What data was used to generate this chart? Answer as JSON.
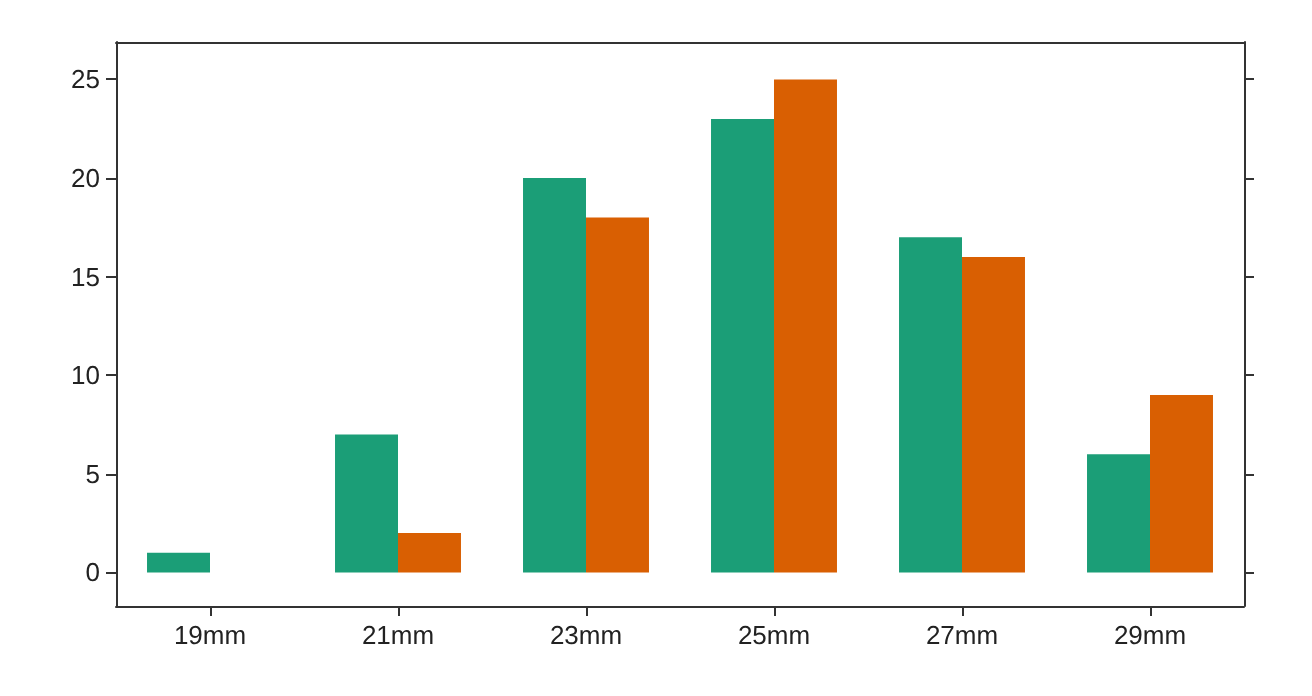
{
  "chart_data": {
    "type": "bar",
    "categories": [
      "19mm",
      "21mm",
      "23mm",
      "25mm",
      "27mm",
      "29mm"
    ],
    "series": [
      {
        "color": "#1b9e77",
        "values": [
          1,
          7,
          20,
          23,
          17,
          6
        ]
      },
      {
        "color": "#d95f02",
        "values": [
          0,
          2,
          18,
          25,
          16,
          9
        ]
      }
    ],
    "ylim": [
      -1.7,
      26.9
    ],
    "yticks": [
      0,
      5,
      10,
      15,
      20,
      25
    ],
    "grid": false
  }
}
